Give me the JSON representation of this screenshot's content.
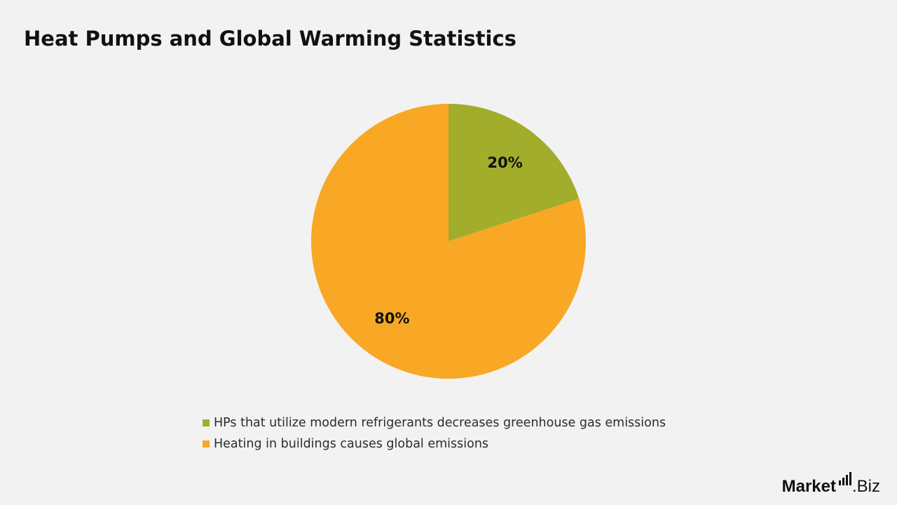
{
  "title": "Heat Pumps and Global Warming Statistics",
  "colors": {
    "background": "#f2f2f2",
    "series_green": "#a1ad2b",
    "series_orange": "#f8a824"
  },
  "chart_data": {
    "type": "pie",
    "title": "Heat Pumps and Global Warming Statistics",
    "slices": [
      {
        "label": "HPs that utilize modern refrigerants decreases greenhouse gas emissions",
        "value": 20,
        "display": "20%",
        "color": "#a1ad2b"
      },
      {
        "label": "Heating in buildings causes global emissions",
        "value": 80,
        "display": "80%",
        "color": "#f8a824"
      }
    ],
    "legend_position": "bottom"
  },
  "brand": {
    "part1": "Market",
    "part2": ".Biz"
  }
}
